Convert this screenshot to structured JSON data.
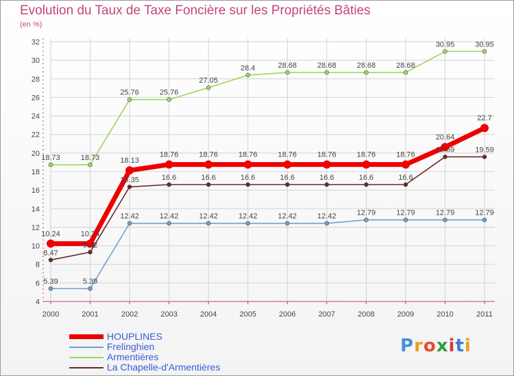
{
  "title": "Evolution du Taux de Taxe Foncière sur les Propriétés Bâties",
  "unit_label": "(en %)",
  "logo": {
    "text": "Proxiti",
    "letter_colors": [
      "#4a8ee0",
      "#e8a020",
      "#e84a2a",
      "#2e9e3e",
      "#d83a3a",
      "#3e7ed6",
      "#e8a020"
    ]
  },
  "chart_data": {
    "type": "line",
    "title": "Evolution du Taux de Taxe Foncière sur les Propriétés Bâties",
    "ylabel": "(en %)",
    "ylim": [
      4,
      32
    ],
    "yticks": [
      4,
      6,
      8,
      10,
      12,
      14,
      16,
      18,
      20,
      22,
      24,
      26,
      28,
      30,
      32
    ],
    "grid": true,
    "legend_position": "bottom-left",
    "x": [
      "2000",
      "2001",
      "2002",
      "2003",
      "2004",
      "2005",
      "2006",
      "2007",
      "2008",
      "2009",
      "2010",
      "2011"
    ],
    "series": [
      {
        "name": "HOUPLINES",
        "color": "#ee0000",
        "values": [
          10.24,
          10.24,
          18.13,
          18.76,
          18.76,
          18.76,
          18.76,
          18.76,
          18.76,
          18.76,
          20.64,
          22.7
        ],
        "labels": [
          "10.24",
          "10.24",
          "18.13",
          "18.76",
          "18.76",
          "18.76",
          "18.76",
          "18.76",
          "18.76",
          "18.76",
          "20.64",
          "22.7"
        ]
      },
      {
        "name": "Frelinghien",
        "color": "#6e9fd0",
        "values": [
          5.39,
          5.39,
          12.42,
          12.42,
          12.42,
          12.42,
          12.42,
          12.42,
          12.79,
          12.79,
          12.79,
          12.79
        ],
        "labels": [
          "5.39",
          "5.39",
          "12.42",
          "12.42",
          "12.42",
          "12.42",
          "12.42",
          "12.42",
          "12.79",
          "12.79",
          "12.79",
          "12.79"
        ]
      },
      {
        "name": "Armentières",
        "color": "#9ed65e",
        "values": [
          18.73,
          18.73,
          25.76,
          25.76,
          27.05,
          28.4,
          28.68,
          28.68,
          28.68,
          28.68,
          30.95,
          30.95
        ],
        "labels": [
          "18.73",
          "18.73",
          "25.76",
          "25.76",
          "27.05",
          "28.4",
          "28.68",
          "28.68",
          "28.68",
          "28.68",
          "30.95",
          "30.95"
        ]
      },
      {
        "name": "La Chapelle-d'Armentières",
        "color": "#6b2727",
        "values": [
          8.47,
          9.32,
          16.35,
          16.6,
          16.6,
          16.6,
          16.6,
          16.6,
          16.6,
          16.6,
          19.59,
          19.59
        ],
        "labels": [
          "8.47",
          "9.32",
          "16.35",
          "16.6",
          "16.6",
          "16.6",
          "16.6",
          "16.6",
          "16.6",
          "16.6",
          "19.59",
          "19.59"
        ]
      }
    ]
  }
}
